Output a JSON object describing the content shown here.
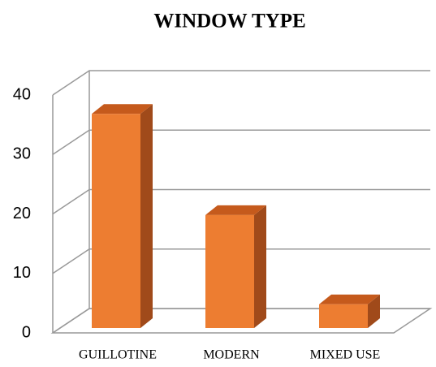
{
  "chart_data": {
    "type": "bar",
    "title": "WINDOW TYPE",
    "categories": [
      "GUILLOTINE",
      "MODERN",
      "MIXED USE"
    ],
    "values": [
      36,
      19,
      4
    ],
    "color": "#ed7d31",
    "ylim": [
      0,
      40
    ],
    "yticks": [
      0,
      10,
      20,
      30,
      40
    ],
    "grid": true
  }
}
